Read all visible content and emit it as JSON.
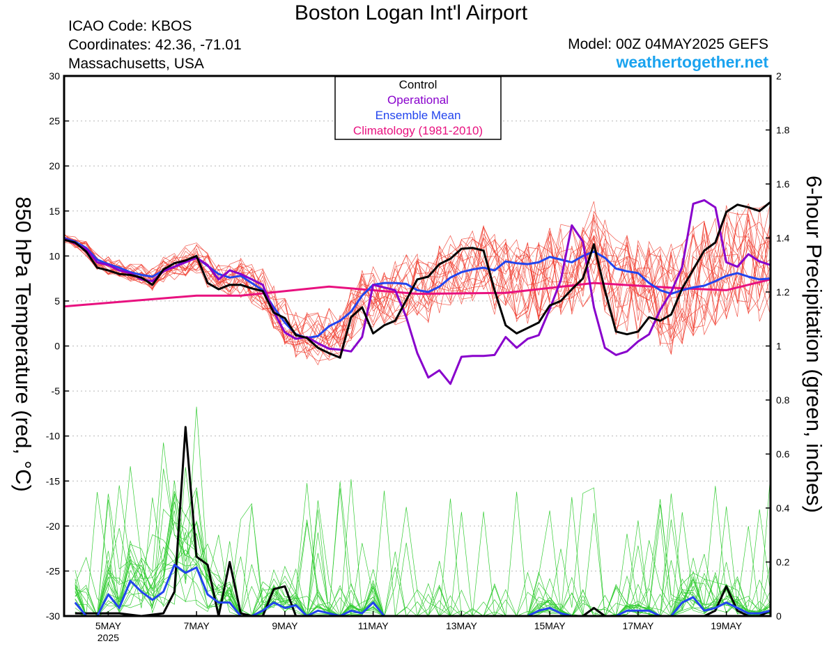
{
  "header": {
    "title": "Boston Logan Int'l Airport",
    "icao": "ICAO Code: KBOS",
    "coords": "Coordinates: 42.36, -71.01",
    "region": "Massachusetts, USA",
    "model": "Model: 00Z 04MAY2025 GEFS",
    "site": "weathertogether.net"
  },
  "chart_data": {
    "type": "line",
    "title": "Boston Logan Int'l Airport",
    "ylabel_left": "850 hPa Temperature (red, °C)",
    "ylabel_right": "6-hour Precipitation (green, inches)",
    "ylim_left": [
      -30,
      30
    ],
    "ylim_right": [
      0,
      2
    ],
    "yticks_left": [
      -30,
      -25,
      -20,
      -15,
      -10,
      -5,
      0,
      5,
      10,
      15,
      20,
      25,
      30
    ],
    "yticks_right": [
      0,
      0.2,
      0.4,
      0.6,
      0.8,
      1,
      1.2,
      1.4,
      1.6,
      1.8,
      2
    ],
    "xlim_hours": [
      0,
      384
    ],
    "xticks": [
      {
        "hour": 24,
        "label": "5MAY",
        "sub": "2025"
      },
      {
        "hour": 72,
        "label": "7MAY",
        "sub": ""
      },
      {
        "hour": 120,
        "label": "9MAY",
        "sub": ""
      },
      {
        "hour": 168,
        "label": "11MAY",
        "sub": ""
      },
      {
        "hour": 216,
        "label": "13MAY",
        "sub": ""
      },
      {
        "hour": 264,
        "label": "15MAY",
        "sub": ""
      },
      {
        "hour": 312,
        "label": "17MAY",
        "sub": ""
      },
      {
        "hour": 360,
        "label": "19MAY",
        "sub": ""
      }
    ],
    "grid": "dotted horizontal",
    "legend": {
      "placement": "top-center",
      "entries": [
        {
          "label": "Control",
          "color": "#000000"
        },
        {
          "label": "Operational",
          "color": "#8800cc"
        },
        {
          "label": "Ensemble Mean",
          "color": "#2244ee"
        },
        {
          "label": "Climatology (1981-2010)",
          "color": "#e8117f"
        }
      ]
    },
    "colors": {
      "members_temp": "#f03a2c",
      "members_precip": "#33cc33"
    },
    "series_temp": [
      {
        "name": "Control",
        "color": "#000000",
        "x": [
          0,
          6,
          12,
          18,
          24,
          30,
          36,
          42,
          48,
          54,
          60,
          66,
          72,
          78,
          84,
          90,
          96,
          102,
          108,
          114,
          120,
          126,
          132,
          138,
          144,
          150,
          156,
          162,
          168,
          174,
          180,
          186,
          192,
          198,
          204,
          210,
          216,
          222,
          228,
          234,
          240,
          246,
          252,
          258,
          264,
          270,
          276,
          282,
          288,
          294,
          300,
          306,
          312,
          318,
          324,
          330,
          336,
          342,
          348,
          354,
          360,
          366,
          372,
          378,
          384
        ],
        "y": [
          11.8,
          11.5,
          10.5,
          8.7,
          8.4,
          8.0,
          7.9,
          7.6,
          6.8,
          8.5,
          9.2,
          9.5,
          10.0,
          7.0,
          6.3,
          6.8,
          6.8,
          6.4,
          6.1,
          3.7,
          3.1,
          1.2,
          0.9,
          -0.2,
          -0.8,
          -1.3,
          3.2,
          4.3,
          1.4,
          2.3,
          2.8,
          5.1,
          7.4,
          7.7,
          9.1,
          9.7,
          10.8,
          10.9,
          10.6,
          6.2,
          2.3,
          1.4,
          2.0,
          2.6,
          4.5,
          5.0,
          6.3,
          7.5,
          11.3,
          6.2,
          1.6,
          1.3,
          1.6,
          3.2,
          2.8,
          3.5,
          6.4,
          8.5,
          10.6,
          11.5,
          14.9,
          15.7,
          15.4,
          15.0,
          16.0
        ]
      },
      {
        "name": "Operational",
        "color": "#8800cc",
        "x": [
          0,
          6,
          12,
          18,
          24,
          30,
          36,
          42,
          48,
          54,
          60,
          66,
          72,
          78,
          84,
          90,
          96,
          102,
          108,
          114,
          120,
          126,
          132,
          138,
          144,
          150,
          156,
          162,
          168,
          174,
          180,
          186,
          192,
          198,
          204,
          210,
          216,
          222,
          228,
          234,
          240,
          246,
          252,
          258,
          264,
          270,
          276,
          282,
          288,
          294,
          300,
          306,
          312,
          318,
          324,
          330,
          336,
          342,
          348,
          354,
          360,
          366,
          372,
          378,
          384
        ],
        "y": [
          11.9,
          11.4,
          10.8,
          9.3,
          9.0,
          8.4,
          8.1,
          7.4,
          7.2,
          8.3,
          8.8,
          9.3,
          9.8,
          9.0,
          7.4,
          8.4,
          8.0,
          7.4,
          6.8,
          3.8,
          1.5,
          0.8,
          1.0,
          0.3,
          -0.3,
          -0.4,
          -0.6,
          1.0,
          6.8,
          6.5,
          6.2,
          3.2,
          -0.8,
          -3.5,
          -2.7,
          -4.2,
          -1.2,
          -1.1,
          -1.1,
          -1.0,
          1.0,
          -0.2,
          0.8,
          1.2,
          4.1,
          7.3,
          13.4,
          11.6,
          4.3,
          -0.2,
          -1.0,
          -0.6,
          0.5,
          1.3,
          4.0,
          6.0,
          8.8,
          15.8,
          16.2,
          15.4,
          9.3,
          8.8,
          10.2,
          9.4,
          9.0
        ]
      },
      {
        "name": "Ensemble Mean",
        "color": "#2244ee",
        "x": [
          0,
          6,
          12,
          18,
          24,
          30,
          36,
          42,
          48,
          54,
          60,
          66,
          72,
          78,
          84,
          90,
          96,
          102,
          108,
          114,
          120,
          126,
          132,
          138,
          144,
          150,
          156,
          162,
          168,
          174,
          180,
          186,
          192,
          198,
          204,
          210,
          216,
          222,
          228,
          234,
          240,
          246,
          252,
          258,
          264,
          270,
          276,
          282,
          288,
          294,
          300,
          306,
          312,
          318,
          324,
          330,
          336,
          342,
          348,
          354,
          360,
          366,
          372,
          378,
          384
        ],
        "y": [
          12.0,
          11.6,
          10.9,
          9.6,
          9.1,
          8.7,
          8.2,
          7.9,
          7.7,
          8.4,
          8.8,
          9.4,
          9.8,
          8.9,
          8.0,
          7.6,
          7.8,
          7.0,
          6.2,
          4.3,
          2.6,
          1.3,
          0.9,
          1.1,
          2.2,
          2.8,
          3.8,
          5.6,
          6.8,
          7.0,
          7.0,
          6.9,
          6.2,
          6.0,
          6.6,
          7.6,
          8.2,
          8.5,
          8.7,
          8.4,
          9.4,
          9.2,
          9.1,
          9.3,
          9.9,
          9.6,
          9.3,
          10.0,
          10.5,
          9.8,
          8.6,
          8.3,
          8.1,
          7.0,
          6.2,
          5.8,
          6.2,
          6.5,
          6.7,
          7.2,
          7.8,
          8.1,
          7.7,
          7.4,
          7.5
        ]
      },
      {
        "name": "Climatology (1981-2010)",
        "color": "#e8117f",
        "x": [
          0,
          72,
          96,
          144,
          192,
          240,
          288,
          336,
          360,
          384
        ],
        "y": [
          4.4,
          5.6,
          5.6,
          6.6,
          5.8,
          5.9,
          7.0,
          6.4,
          6.2,
          7.4
        ]
      }
    ],
    "series_precip": [
      {
        "name": "Control",
        "color": "#000000",
        "x": [
          6,
          18,
          30,
          42,
          54,
          60,
          66,
          72,
          78,
          84,
          90,
          96,
          102,
          108,
          114,
          120,
          126,
          132,
          138,
          144,
          150,
          156,
          162,
          168,
          174,
          180,
          186,
          192,
          198,
          204,
          210,
          216,
          222,
          228,
          234,
          240,
          246,
          252,
          258,
          264,
          270,
          276,
          282,
          288,
          294,
          300,
          306,
          312,
          318,
          324,
          330,
          336,
          342,
          348,
          354,
          360,
          366,
          372,
          378,
          384
        ],
        "y": [
          0.01,
          0.01,
          0.01,
          0.0,
          0.01,
          0.09,
          0.7,
          0.22,
          0.19,
          0.0,
          0.2,
          0.01,
          0.0,
          0.0,
          0.1,
          0.11,
          0.0,
          0.0,
          0.0,
          0.0,
          0.0,
          0.0,
          0.0,
          0.0,
          0.0,
          0.0,
          0.0,
          0.0,
          0.0,
          0.0,
          0.0,
          0.0,
          0.0,
          0.0,
          0.0,
          0.0,
          0.0,
          0.0,
          0.0,
          0.0,
          0.0,
          0.0,
          0.0,
          0.03,
          0.0,
          0.0,
          0.0,
          0.0,
          0.0,
          0.0,
          0.0,
          0.0,
          0.0,
          0.0,
          0.02,
          0.11,
          0.02,
          0.0,
          0.0,
          0.02
        ]
      },
      {
        "name": "Ensemble Mean",
        "color": "#2244ee",
        "x": [
          6,
          12,
          18,
          24,
          30,
          36,
          42,
          48,
          54,
          60,
          66,
          72,
          78,
          84,
          90,
          96,
          102,
          108,
          114,
          120,
          126,
          132,
          138,
          144,
          150,
          156,
          162,
          168,
          174,
          180,
          186,
          192,
          198,
          204,
          210,
          216,
          222,
          228,
          234,
          240,
          246,
          252,
          258,
          264,
          270,
          276,
          282,
          288,
          294,
          300,
          306,
          312,
          318,
          324,
          330,
          336,
          342,
          348,
          354,
          360,
          366,
          372,
          378,
          384
        ],
        "y": [
          0.05,
          0.0,
          0.0,
          0.08,
          0.03,
          0.13,
          0.09,
          0.06,
          0.09,
          0.19,
          0.16,
          0.18,
          0.08,
          0.05,
          0.05,
          0.0,
          0.0,
          0.02,
          0.05,
          0.03,
          0.04,
          0.0,
          0.02,
          0.01,
          0.0,
          0.02,
          0.01,
          0.05,
          0.0,
          0.0,
          0.0,
          0.0,
          0.0,
          0.0,
          0.0,
          0.0,
          0.0,
          0.0,
          0.0,
          0.0,
          0.0,
          0.0,
          0.02,
          0.03,
          0.01,
          0.0,
          0.0,
          0.0,
          0.0,
          0.0,
          0.02,
          0.02,
          0.02,
          0.0,
          0.0,
          0.05,
          0.07,
          0.02,
          0.03,
          0.05,
          0.03,
          0.01,
          0.01,
          0.02
        ]
      }
    ]
  }
}
